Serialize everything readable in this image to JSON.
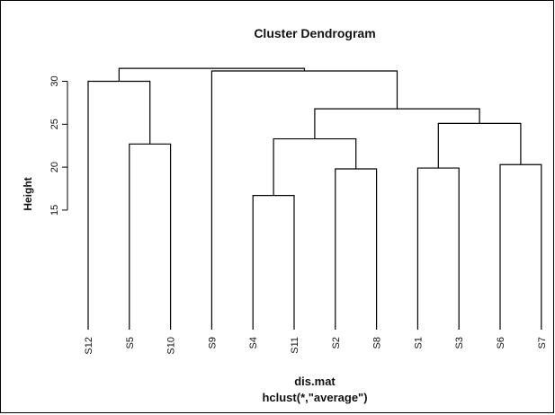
{
  "chart_data": {
    "type": "dendrogram",
    "title": "Cluster Dendrogram",
    "ylabel": "Height",
    "xlabel": "dis.mat",
    "sublabel": "hclust(*,\"average\")",
    "yticks": [
      15,
      20,
      25,
      30
    ],
    "leaves": [
      "S12",
      "S5",
      "S10",
      "S9",
      "S4",
      "S11",
      "S2",
      "S8",
      "S1",
      "S3",
      "S6",
      "S7"
    ],
    "merges": [
      {
        "id": "A",
        "left": "S4",
        "right": "S11",
        "height": 16.7
      },
      {
        "id": "B",
        "left": "S2",
        "right": "S8",
        "height": 19.8
      },
      {
        "id": "C",
        "left": "S1",
        "right": "S3",
        "height": 19.9
      },
      {
        "id": "D",
        "left": "S6",
        "right": "S7",
        "height": 20.3
      },
      {
        "id": "E",
        "left": "S5",
        "right": "S10",
        "height": 22.7
      },
      {
        "id": "F",
        "left": "A",
        "right": "B",
        "height": 23.3
      },
      {
        "id": "G",
        "left": "C",
        "right": "D",
        "height": 25.1
      },
      {
        "id": "H",
        "left": "F",
        "right": "G",
        "height": 26.8
      },
      {
        "id": "I",
        "left": "S12",
        "right": "E",
        "height": 30.0
      },
      {
        "id": "J",
        "left": "S9",
        "right": "H",
        "height": 31.2
      },
      {
        "id": "K",
        "left": "I",
        "right": "J",
        "height": 31.5
      }
    ]
  }
}
